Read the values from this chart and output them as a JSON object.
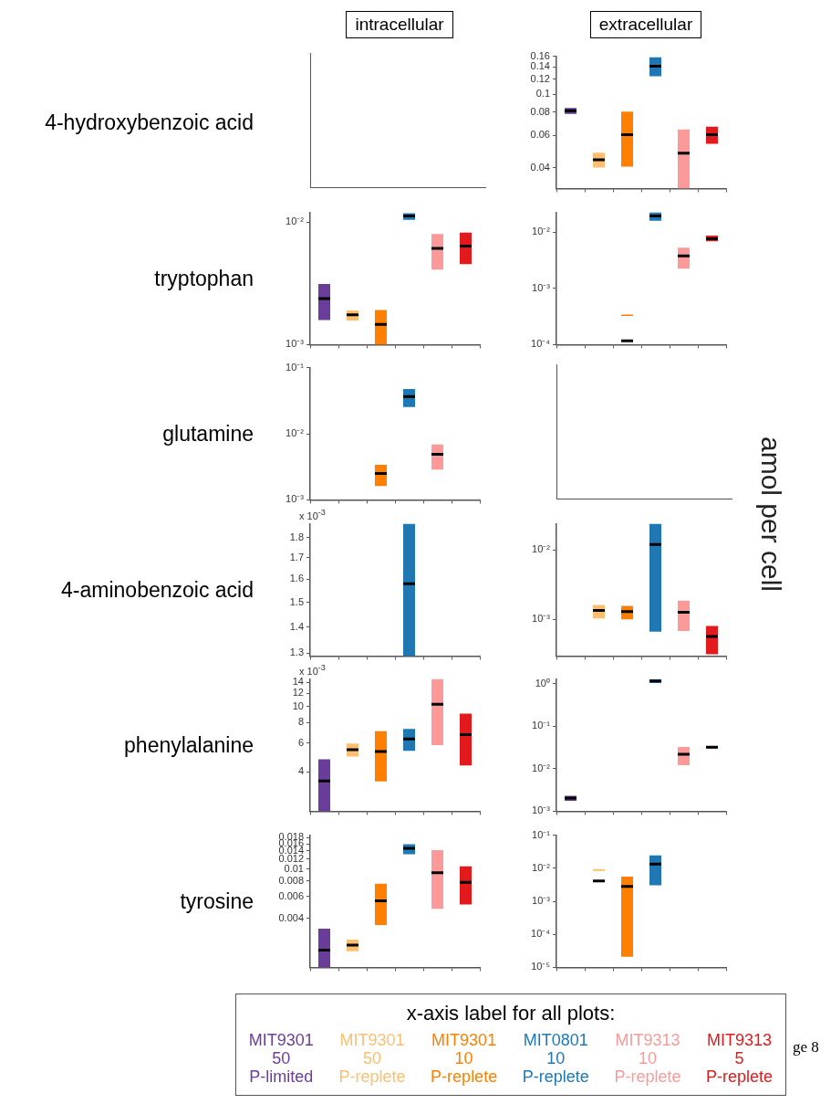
{
  "chart_data": [
    {
      "type": "other",
      "title": "intracellular",
      "ylabel": "4-hydroxybenzoic acid"
    },
    {
      "type": "box",
      "title": "extracellular",
      "categories": [
        null,
        null,
        null,
        null,
        null,
        null
      ],
      "colors": [
        "#6a3d9a",
        "#fdbf6f",
        "#ff7f00",
        "#1f78b4",
        "#fb9a99",
        "#e31a1c"
      ],
      "log": true,
      "ylim": [
        0.031,
        0.16
      ],
      "yticks": [
        0.04,
        0.06,
        0.08,
        0.1,
        0.12,
        0.14,
        0.16
      ],
      "tick_labels": "y",
      "boxes": [
        {
          "low": 0.0782,
          "q1": 0.0782,
          "median": 0.0813,
          "q3": 0.0843,
          "high": 0.0843
        },
        {
          "low": 0.0402,
          "q1": 0.0402,
          "median": 0.0443,
          "q3": 0.0483,
          "high": 0.0483
        },
        {
          "low": 0.0406,
          "q1": 0.0406,
          "median": 0.0604,
          "q3": 0.0804,
          "high": 0.0804
        },
        {
          "low": 0.1247,
          "q1": 0.1247,
          "median": 0.1416,
          "q3": 0.158,
          "high": 0.158
        },
        {
          "low": 0.031,
          "q1": 0.031,
          "median": 0.048,
          "q3": 0.0645,
          "high": 0.0645
        },
        {
          "low": 0.054,
          "q1": 0.054,
          "median": 0.0604,
          "q3": 0.0667,
          "high": 0.0667
        }
      ]
    },
    {
      "type": "box",
      "ylabel": "tryptophan",
      "categories": [
        null,
        null,
        null,
        null,
        null,
        null
      ],
      "colors": [
        "#6a3d9a",
        "#fdbf6f",
        "#ff7f00",
        "#1f78b4",
        "#fb9a99",
        "#e31a1c"
      ],
      "log": true,
      "ylim": [
        0.001,
        0.012
      ],
      "yticks": [
        {
          "value": 0.001,
          "label": "10⁻³"
        },
        {
          "value": 0.01,
          "label": "10⁻²"
        }
      ],
      "tick_labels": "y",
      "boxes": [
        {
          "low": 0.00159,
          "q1": 0.00159,
          "median": 0.00237,
          "q3": 0.00313,
          "high": 0.00313
        },
        {
          "low": 0.00157,
          "q1": 0.00157,
          "median": 0.00175,
          "q3": 0.0019,
          "high": 0.0019
        },
        {
          "low": 0.001,
          "q1": 0.001,
          "median": 0.00146,
          "q3": 0.00192,
          "high": 0.00192
        },
        {
          "low": 0.01045,
          "q1": 0.01045,
          "median": 0.0112,
          "q3": 0.0118,
          "high": 0.0118
        },
        {
          "low": 0.0041,
          "q1": 0.0041,
          "median": 0.0061,
          "q3": 0.008,
          "high": 0.008
        },
        {
          "low": 0.00453,
          "q1": 0.00453,
          "median": 0.00637,
          "q3": 0.0082,
          "high": 0.0082
        }
      ]
    },
    {
      "type": "box",
      "categories": [
        null,
        null,
        null,
        null,
        null,
        null
      ],
      "colors": [
        "#6a3d9a",
        "#fdbf6f",
        "#ff7f00",
        "#1f78b4",
        "#fb9a99",
        "#e31a1c"
      ],
      "log": true,
      "ylim": [
        0.0001,
        0.0224
      ],
      "yticks": [
        {
          "value": 0.0001,
          "label": "10⁻⁴"
        },
        {
          "value": 0.001,
          "label": "10⁻³"
        },
        {
          "value": 0.01,
          "label": "10⁻²"
        }
      ],
      "tick_labels": "y",
      "boxes": [
        null,
        null,
        {
          "low": 0.000323,
          "q1": 0.000323,
          "median": 0.000117,
          "q3": 0.000343,
          "high": 0.000343
        },
        {
          "low": 0.0159,
          "q1": 0.0159,
          "median": 0.0194,
          "q3": 0.0224,
          "high": 0.0224
        },
        {
          "low": 0.00223,
          "q1": 0.00223,
          "median": 0.00377,
          "q3": 0.0053,
          "high": 0.0053
        },
        {
          "low": 0.00685,
          "q1": 0.00685,
          "median": 0.00764,
          "q3": 0.0087,
          "high": 0.0087
        }
      ]
    },
    {
      "type": "box",
      "ylabel": "glutamine",
      "categories": [
        null,
        null,
        null,
        null,
        null,
        null
      ],
      "colors": [
        "#6a3d9a",
        "#fdbf6f",
        "#ff7f00",
        "#1f78b4",
        "#fb9a99",
        "#e31a1c"
      ],
      "log": true,
      "ylim": [
        0.001,
        0.1
      ],
      "yticks": [
        {
          "value": 0.001,
          "label": "10⁻³"
        },
        {
          "value": 0.01,
          "label": "10⁻²"
        },
        {
          "value": 0.1,
          "label": "10⁻¹"
        }
      ],
      "tick_labels": "y",
      "boxes": [
        null,
        null,
        {
          "low": 0.00162,
          "q1": 0.00162,
          "median": 0.0025,
          "q3": 0.0034,
          "high": 0.0034
        },
        {
          "low": 0.0254,
          "q1": 0.0254,
          "median": 0.0365,
          "q3": 0.0476,
          "high": 0.0476
        },
        {
          "low": 0.00286,
          "q1": 0.00286,
          "median": 0.00489,
          "q3": 0.0069,
          "high": 0.0069
        },
        null
      ]
    },
    {
      "type": "other",
      "y2label": "amol per cell"
    },
    {
      "type": "box",
      "ylabel": "4-aminobenzoic acid",
      "annotations": [
        "x 10$^{-3}$"
      ],
      "categories": [
        null,
        null,
        null,
        null,
        null,
        null
      ],
      "colors": [
        "#6a3d9a",
        "#fdbf6f",
        "#ff7f00",
        "#1f78b4",
        "#fb9a99",
        "#e31a1c"
      ],
      "log": true,
      "ylim": [
        1.29,
        1.87
      ],
      "yticks": [
        1.3,
        1.4,
        1.5,
        1.6,
        1.7,
        1.8
      ],
      "tick_labels": "y",
      "boxes": [
        null,
        null,
        null,
        {
          "low": 1.29,
          "q1": 1.29,
          "median": 1.58,
          "q3": 1.87,
          "high": 1.87
        },
        null,
        null
      ]
    },
    {
      "type": "box",
      "categories": [
        null,
        null,
        null,
        null,
        null,
        null
      ],
      "colors": [
        "#6a3d9a",
        "#fdbf6f",
        "#ff7f00",
        "#1f78b4",
        "#fb9a99",
        "#e31a1c"
      ],
      "log": true,
      "ylim": [
        0.000318,
        0.0236
      ],
      "yticks": [
        {
          "value": 0.001,
          "label": "10⁻³"
        },
        {
          "value": 0.01,
          "label": "10⁻²"
        }
      ],
      "tick_labels": "y",
      "boxes": [
        null,
        {
          "low": 0.00104,
          "q1": 0.00104,
          "median": 0.00135,
          "q3": 0.00162,
          "high": 0.00162
        },
        {
          "low": 0.00101,
          "q1": 0.00101,
          "median": 0.0013,
          "q3": 0.00157,
          "high": 0.00157
        },
        {
          "low": 0.00067,
          "q1": 0.00067,
          "median": 0.0119,
          "q3": 0.0236,
          "high": 0.0236
        },
        {
          "low": 0.000687,
          "q1": 0.000687,
          "median": 0.00127,
          "q3": 0.00187,
          "high": 0.00187
        },
        {
          "low": 0.000318,
          "q1": 0.000318,
          "median": 0.00057,
          "q3": 0.00081,
          "high": 0.00081
        }
      ]
    },
    {
      "type": "box",
      "ylabel": "phenylalanine",
      "annotations": [
        "x 10$^{-3}$"
      ],
      "categories": [
        null,
        null,
        null,
        null,
        null,
        null
      ],
      "colors": [
        "#6a3d9a",
        "#fdbf6f",
        "#ff7f00",
        "#1f78b4",
        "#fb9a99",
        "#e31a1c"
      ],
      "log": true,
      "ylim": [
        2.3,
        14.7
      ],
      "yticks": [
        4,
        6,
        8,
        10,
        12,
        14
      ],
      "tick_labels": "y",
      "boxes": [
        {
          "low": 2.3,
          "q1": 2.3,
          "median": 3.52,
          "q3": 4.76,
          "high": 4.76
        },
        {
          "low": 4.96,
          "q1": 4.96,
          "median": 5.46,
          "q3": 5.95,
          "high": 5.95
        },
        {
          "low": 3.5,
          "q1": 3.5,
          "median": 5.31,
          "q3": 7.08,
          "high": 7.08
        },
        {
          "low": 5.37,
          "q1": 5.37,
          "median": 6.33,
          "q3": 7.3,
          "high": 7.3
        },
        {
          "low": 5.82,
          "q1": 5.82,
          "median": 10.3,
          "q3": 14.7,
          "high": 14.7
        },
        {
          "low": 4.37,
          "q1": 4.37,
          "median": 6.74,
          "q3": 9.04,
          "high": 9.04
        }
      ]
    },
    {
      "type": "box",
      "categories": [
        null,
        null,
        null,
        null,
        null,
        null
      ],
      "colors": [
        "#6a3d9a",
        "#fdbf6f",
        "#ff7f00",
        "#1f78b4",
        "#fb9a99",
        "#e31a1c"
      ],
      "log": true,
      "ylim": [
        0.001,
        1.3
      ],
      "yticks": [
        {
          "value": 0.001,
          "label": "10⁻³"
        },
        {
          "value": 0.01,
          "label": "10⁻²"
        },
        {
          "value": 0.1,
          "label": "10⁻¹"
        },
        {
          "value": 1,
          "label": "10⁰"
        }
      ],
      "tick_labels": "y",
      "boxes": [
        {
          "low": 0.00175,
          "q1": 0.00175,
          "median": 0.00203,
          "q3": 0.00231,
          "high": 0.00231
        },
        null,
        null,
        {
          "low": 1.05,
          "q1": 1.05,
          "median": 1.17,
          "q3": 1.29,
          "high": 1.29
        },
        {
          "low": 0.0121,
          "q1": 0.0121,
          "median": 0.0219,
          "q3": 0.0327,
          "high": 0.0327
        },
        {
          "low": 0.0302,
          "q1": 0.0302,
          "median": 0.0322,
          "q3": 0.0344,
          "high": 0.0344
        }
      ]
    },
    {
      "type": "box",
      "ylabel": "tyrosine",
      "categories": [
        null,
        null,
        null,
        null,
        null,
        null
      ],
      "colors": [
        "#6a3d9a",
        "#fdbf6f",
        "#ff7f00",
        "#1f78b4",
        "#fb9a99",
        "#e31a1c"
      ],
      "log": true,
      "ylim": [
        0.0016,
        0.0188
      ],
      "yticks": [
        0.004,
        0.006,
        0.008,
        0.01,
        0.012,
        0.014,
        0.016,
        0.018
      ],
      "tick_labels": "y",
      "boxes": [
        {
          "low": 0.0016,
          "q1": 0.0016,
          "median": 0.00221,
          "q3": 0.00329,
          "high": 0.00329
        },
        {
          "low": 0.00216,
          "q1": 0.00216,
          "median": 0.00242,
          "q3": 0.00268,
          "high": 0.00268
        },
        {
          "low": 0.00352,
          "q1": 0.00352,
          "median": 0.00553,
          "q3": 0.00762,
          "high": 0.00762
        },
        {
          "low": 0.0132,
          "q1": 0.0132,
          "median": 0.0147,
          "q3": 0.0159,
          "high": 0.0159
        },
        {
          "low": 0.00476,
          "q1": 0.00476,
          "median": 0.00935,
          "q3": 0.0142,
          "high": 0.0142
        },
        {
          "low": 0.00517,
          "q1": 0.00517,
          "median": 0.0078,
          "q3": 0.0105,
          "high": 0.0105
        }
      ]
    },
    {
      "type": "box",
      "categories": [
        null,
        null,
        null,
        null,
        null,
        null
      ],
      "colors": [
        "#6a3d9a",
        "#fdbf6f",
        "#ff7f00",
        "#1f78b4",
        "#fb9a99",
        "#e31a1c"
      ],
      "log": true,
      "ylim": [
        1e-05,
        0.1
      ],
      "yticks": [
        {
          "value": 1e-05,
          "label": "10⁻⁵"
        },
        {
          "value": 0.0001,
          "label": "10⁻⁴"
        },
        {
          "value": 0.001,
          "label": "10⁻³"
        },
        {
          "value": 0.01,
          "label": "10⁻²"
        },
        {
          "value": 0.1,
          "label": "10⁻¹"
        }
      ],
      "tick_labels": "y",
      "boxes": [
        null,
        {
          "low": 0.0083,
          "q1": 0.0083,
          "median": 0.00413,
          "q3": 0.0094,
          "high": 0.0094
        },
        {
          "low": 2.1e-05,
          "q1": 2.1e-05,
          "median": 0.00279,
          "q3": 0.0056,
          "high": 0.0056
        },
        {
          "low": 0.00303,
          "q1": 0.00303,
          "median": 0.0134,
          "q3": 0.0245,
          "high": 0.0245
        },
        null,
        null
      ]
    },
    {
      "type": "other",
      "title": "x-axis label for all plots:",
      "annotations": [
        "ge 8"
      ],
      "categories": [
        "MIT9301\n50\nP-limited",
        "MIT9301\n50\nP-replete",
        "MIT9301\n10\nP-replete",
        "MIT0801\n10\nP-replete",
        "MIT9313\n10\nP-replete",
        "MIT9313\n5\nP-replete"
      ],
      "colors": [
        "#6a3d9a",
        "#fdbf6f",
        "#ff7f00",
        "#1f78b4",
        "#fb9a99",
        "#e31a1c"
      ]
    }
  ]
}
